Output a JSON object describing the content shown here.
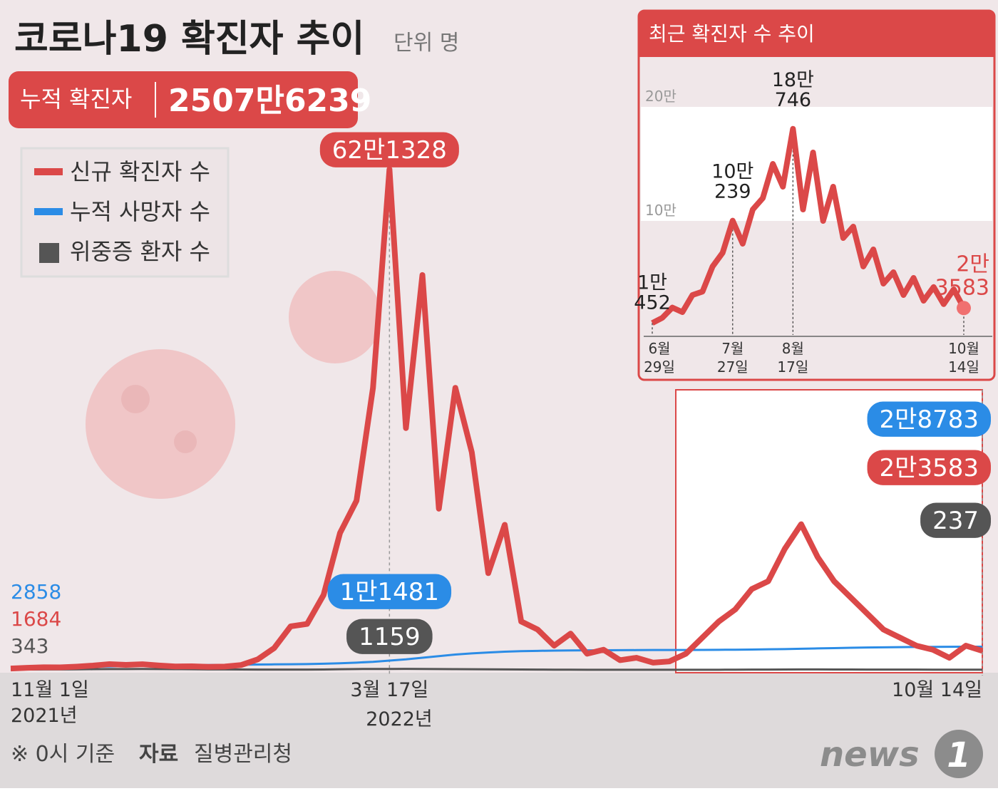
{
  "title": "코로나19 확진자 추이",
  "unit": "단위 명",
  "cumulative": {
    "label": "누적 확진자",
    "value_label": "2507만6239"
  },
  "footer": {
    "note": "※ 0시 기준",
    "source_label": "자료",
    "source": "질병관리청"
  },
  "logo": {
    "word": "news",
    "digit": "1"
  },
  "chart_data": [
    {
      "type": "line",
      "ylim": [
        0,
        650000
      ],
      "categories": [
        "11월 1일",
        null,
        null,
        null,
        null,
        null,
        null,
        null,
        null,
        null,
        null,
        null,
        null,
        null,
        null,
        null,
        null,
        null,
        null,
        null,
        null,
        null,
        null,
        "3월 17일",
        null,
        null,
        null,
        null,
        null,
        null,
        null,
        null,
        null,
        null,
        null,
        null,
        null,
        null,
        null,
        null,
        null,
        null,
        null,
        null,
        null,
        null,
        null,
        null,
        null,
        null,
        null,
        null,
        null,
        null,
        null,
        null,
        null,
        null,
        null,
        "10월 14일"
      ],
      "year_labels": [
        "2021년",
        "2022년"
      ],
      "series": [
        {
          "name": "신규 확진자 수",
          "color": "#db4848",
          "values": [
            1684,
            2500,
            3200,
            3100,
            4000,
            5300,
            7100,
            6200,
            7000,
            5400,
            4200,
            4400,
            3800,
            4100,
            6000,
            13000,
            27000,
            54000,
            57000,
            93000,
            170000,
            210000,
            350000,
            621328,
            300000,
            490000,
            200000,
            350000,
            270000,
            120000,
            180000,
            60000,
            50000,
            30000,
            45000,
            20000,
            25000,
            12000,
            15000,
            9000,
            10452,
            20000,
            40000,
            60000,
            75000,
            100239,
            110000,
            150000,
            180746,
            140000,
            110000,
            90000,
            70000,
            50000,
            40000,
            30000,
            25000,
            15000,
            30000,
            23583
          ],
          "value_labels": [
            "1684",
            null,
            null,
            null,
            null,
            null,
            null,
            null,
            null,
            null,
            null,
            null,
            null,
            null,
            null,
            null,
            null,
            null,
            null,
            null,
            null,
            null,
            null,
            "62만1328",
            null,
            null,
            null,
            null,
            null,
            null,
            null,
            null,
            null,
            null,
            null,
            null,
            null,
            null,
            null,
            null,
            null,
            null,
            null,
            null,
            null,
            null,
            null,
            null,
            null,
            null,
            null,
            null,
            null,
            null,
            null,
            null,
            null,
            null,
            null,
            "2만3583"
          ]
        },
        {
          "name": "누적 사망자 수",
          "color": "#2b8ce6",
          "values": [
            2858,
            3000,
            3200,
            3400,
            3600,
            3900,
            4200,
            4600,
            5000,
            5300,
            5600,
            5800,
            6000,
            6200,
            6400,
            6600,
            6800,
            7000,
            7200,
            7600,
            8200,
            9000,
            10000,
            11481,
            13000,
            15000,
            17000,
            19000,
            20500,
            21600,
            22500,
            23200,
            23600,
            23900,
            24100,
            24200,
            24300,
            24400,
            24500,
            24600,
            24650,
            24700,
            24800,
            24900,
            25000,
            25200,
            25500,
            25800,
            26200,
            26600,
            27000,
            27400,
            27700,
            28000,
            28200,
            28400,
            28550,
            28650,
            28720,
            28783
          ],
          "value_labels": [
            "2858",
            null,
            null,
            null,
            null,
            null,
            null,
            null,
            null,
            null,
            null,
            null,
            null,
            null,
            null,
            null,
            null,
            null,
            null,
            null,
            null,
            null,
            null,
            "1만1481",
            null,
            null,
            null,
            null,
            null,
            null,
            null,
            null,
            null,
            null,
            null,
            null,
            null,
            null,
            null,
            null,
            null,
            null,
            null,
            null,
            null,
            null,
            null,
            null,
            null,
            null,
            null,
            null,
            null,
            null,
            null,
            null,
            null,
            null,
            null,
            "2만8783"
          ]
        },
        {
          "name": "위중증 환자 수",
          "color": "#555555",
          "values": [
            343,
            400,
            500,
            600,
            700,
            850,
            950,
            1050,
            1100,
            1000,
            900,
            750,
            600,
            500,
            420,
            380,
            350,
            300,
            350,
            480,
            800,
            1050,
            1100,
            1159,
            1200,
            1100,
            1000,
            900,
            800,
            650,
            500,
            400,
            300,
            250,
            200,
            150,
            120,
            100,
            80,
            70,
            65,
            80,
            110,
            150,
            200,
            280,
            380,
            480,
            520,
            500,
            450,
            400,
            350,
            320,
            300,
            280,
            260,
            250,
            245,
            237
          ],
          "value_labels": [
            "343",
            null,
            null,
            null,
            null,
            null,
            null,
            null,
            null,
            null,
            null,
            null,
            null,
            null,
            null,
            null,
            null,
            null,
            null,
            null,
            null,
            null,
            null,
            "1159",
            null,
            null,
            null,
            null,
            null,
            null,
            null,
            null,
            null,
            null,
            null,
            null,
            null,
            null,
            null,
            null,
            null,
            null,
            null,
            null,
            null,
            null,
            null,
            null,
            null,
            null,
            null,
            null,
            null,
            null,
            null,
            null,
            null,
            null,
            null,
            "237"
          ]
        }
      ]
    },
    {
      "type": "line",
      "title": "최근 확진자 수 추이",
      "ylim": [
        0,
        230000
      ],
      "yticks": [
        {
          "value": 100000,
          "label": "10만"
        },
        {
          "value": 200000,
          "label": "20만"
        }
      ],
      "categories": [
        "6월 29일",
        null,
        null,
        null,
        null,
        null,
        null,
        null,
        "7월 27일",
        null,
        null,
        null,
        null,
        null,
        "8월 17일",
        null,
        null,
        null,
        null,
        null,
        null,
        null,
        null,
        null,
        null,
        null,
        null,
        null,
        null,
        null,
        null,
        "10월 14일"
      ],
      "series": [
        {
          "name": "신규 확진자 수",
          "color": "#db4848",
          "values": [
            10452,
            15000,
            24000,
            20000,
            35000,
            38000,
            60000,
            72000,
            100239,
            80000,
            110000,
            120000,
            150000,
            130000,
            180746,
            110000,
            160000,
            100000,
            130000,
            85000,
            95000,
            60000,
            75000,
            45000,
            55000,
            35000,
            50000,
            30000,
            42000,
            27000,
            40000,
            23583
          ],
          "value_labels": [
            "1만 452",
            null,
            null,
            null,
            null,
            null,
            null,
            null,
            "10만 239",
            null,
            null,
            null,
            null,
            null,
            "18만 746",
            null,
            null,
            null,
            null,
            null,
            null,
            null,
            null,
            null,
            null,
            null,
            null,
            null,
            null,
            null,
            null,
            "2만 3583"
          ]
        }
      ]
    }
  ]
}
